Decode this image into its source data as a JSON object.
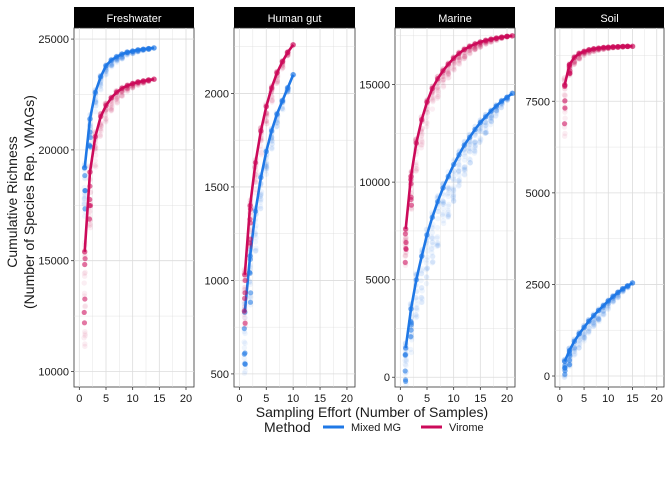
{
  "figure": {
    "ylabel_line1": "Cumulative Richness",
    "ylabel_line2": "(Number of Species Rep. VMAGs)",
    "xlabel": "Sampling Effort (Number of Samples)"
  },
  "legend": {
    "title": "Method",
    "items": [
      {
        "label": "Mixed MG",
        "color": "#1f78e6"
      },
      {
        "label": "Virome",
        "color": "#cc0a5a"
      }
    ]
  },
  "chart_data": {
    "type": "scatter",
    "x_ticks": [
      "0",
      "5",
      "10",
      "15",
      "20"
    ],
    "facets": [
      {
        "name": "Freshwater",
        "xlim": [
          -1,
          21.5
        ],
        "ylim": [
          9300,
          25500
        ],
        "y_ticks": [
          10000,
          15000,
          20000,
          25000
        ],
        "y_tick_labels": [
          "10000",
          "15000",
          "20000",
          "25000"
        ],
        "series": [
          {
            "name": "Mixed MG",
            "color": "#1f78e6",
            "x": [
              1,
              2,
              3,
              4,
              5,
              6,
              7,
              8,
              9,
              10,
              11,
              12,
              13,
              14
            ],
            "y": [
              19200,
              21400,
              22600,
              23300,
              23800,
              24050,
              24200,
              24320,
              24400,
              24460,
              24510,
              24540,
              24570,
              24600
            ],
            "spread": [
              2600,
              1600,
              1000,
              700,
              500,
              400,
              300,
              240,
              180,
              140,
              100,
              70,
              40,
              0
            ]
          },
          {
            "name": "Virome",
            "color": "#cc0a5a",
            "x": [
              1,
              2,
              3,
              4,
              5,
              6,
              7,
              8,
              9,
              10,
              11,
              12,
              13,
              14
            ],
            "y": [
              15400,
              19000,
              20600,
              21500,
              22000,
              22350,
              22600,
              22780,
              22900,
              22990,
              23060,
              23110,
              23150,
              23190
            ],
            "spread": [
              5000,
              3000,
              1800,
              1200,
              900,
              700,
              550,
              420,
              320,
              240,
              170,
              110,
              60,
              0
            ]
          }
        ]
      },
      {
        "name": "Human gut",
        "xlim": [
          -1,
          21.5
        ],
        "ylim": [
          430,
          2350
        ],
        "y_ticks": [
          500,
          1000,
          1500,
          2000
        ],
        "y_tick_labels": [
          "500",
          "1000",
          "1500",
          "2000"
        ],
        "series": [
          {
            "name": "Mixed MG",
            "color": "#1f78e6",
            "x": [
              1,
              2,
              3,
              4,
              5,
              6,
              7,
              8,
              9,
              10
            ],
            "y": [
              830,
              1130,
              1370,
              1550,
              1690,
              1800,
              1890,
              1960,
              2030,
              2100
            ],
            "spread": [
              420,
              330,
              250,
              190,
              140,
              110,
              80,
              55,
              30,
              0
            ]
          },
          {
            "name": "Virome",
            "color": "#cc0a5a",
            "x": [
              1,
              2,
              3,
              4,
              5,
              6,
              7,
              8,
              9,
              10
            ],
            "y": [
              1030,
              1400,
              1630,
              1800,
              1930,
              2030,
              2110,
              2170,
              2220,
              2260
            ],
            "spread": [
              330,
              260,
              200,
              150,
              120,
              90,
              65,
              45,
              25,
              0
            ]
          }
        ]
      },
      {
        "name": "Marine",
        "xlim": [
          -1,
          21.5
        ],
        "ylim": [
          -500,
          17900
        ],
        "y_ticks": [
          0,
          5000,
          10000,
          15000
        ],
        "y_tick_labels": [
          "0",
          "5000",
          "10000",
          "15000"
        ],
        "series": [
          {
            "name": "Mixed MG",
            "color": "#1f78e6",
            "x": [
              1,
              2,
              3,
              4,
              5,
              6,
              7,
              8,
              9,
              10,
              11,
              12,
              13,
              14,
              15,
              16,
              17,
              18,
              19,
              20,
              21
            ],
            "y": [
              1500,
              3500,
              5000,
              6200,
              7300,
              8200,
              9000,
              9700,
              10300,
              10900,
              11400,
              11900,
              12300,
              12700,
              13050,
              13350,
              13650,
              13900,
              14150,
              14350,
              14550
            ],
            "spread": [
              2200,
              2600,
              2800,
              2900,
              2900,
              2800,
              2700,
              2600,
              2400,
              2200,
              2000,
              1800,
              1600,
              1400,
              1200,
              1000,
              800,
              600,
              400,
              200,
              0
            ]
          },
          {
            "name": "Virome",
            "color": "#cc0a5a",
            "x": [
              1,
              2,
              3,
              4,
              5,
              6,
              7,
              8,
              9,
              10,
              11,
              12,
              13,
              14,
              15,
              16,
              17,
              18,
              19,
              20,
              21
            ],
            "y": [
              7600,
              10300,
              12000,
              13200,
              14100,
              14800,
              15300,
              15700,
              16050,
              16350,
              16600,
              16800,
              16950,
              17080,
              17180,
              17260,
              17320,
              17380,
              17430,
              17470,
              17500
            ],
            "spread": [
              2200,
              2100,
              1900,
              1700,
              1500,
              1300,
              1150,
              1000,
              870,
              750,
              640,
              540,
              450,
              370,
              300,
              240,
              180,
              130,
              80,
              40,
              0
            ]
          }
        ]
      },
      {
        "name": "Soil",
        "xlim": [
          -1,
          21.5
        ],
        "ylim": [
          -300,
          9500
        ],
        "y_ticks": [
          0,
          2500,
          5000,
          7500
        ],
        "y_tick_labels": [
          "0",
          "2500",
          "5000",
          "7500"
        ],
        "series": [
          {
            "name": "Mixed MG",
            "color": "#1f78e6",
            "x": [
              1,
              2,
              3,
              4,
              5,
              6,
              7,
              8,
              9,
              10,
              11,
              12,
              13,
              14,
              15
            ],
            "y": [
              400,
              700,
              950,
              1150,
              1330,
              1500,
              1650,
              1790,
              1920,
              2050,
              2170,
              2280,
              2380,
              2460,
              2540
            ],
            "spread": [
              500,
              500,
              480,
              460,
              430,
              400,
              370,
              340,
              300,
              260,
              220,
              170,
              120,
              60,
              0
            ]
          },
          {
            "name": "Virome",
            "color": "#cc0a5a",
            "x": [
              1,
              2,
              3,
              4,
              5,
              6,
              7,
              8,
              9,
              10,
              11,
              12,
              13,
              14,
              15
            ],
            "y": [
              7950,
              8500,
              8700,
              8800,
              8860,
              8900,
              8930,
              8950,
              8965,
              8975,
              8985,
              8990,
              8995,
              9000,
              9000
            ],
            "spread": [
              1600,
              350,
              250,
              180,
              140,
              110,
              90,
              70,
              55,
              45,
              35,
              25,
              15,
              8,
              0
            ]
          }
        ]
      }
    ]
  }
}
